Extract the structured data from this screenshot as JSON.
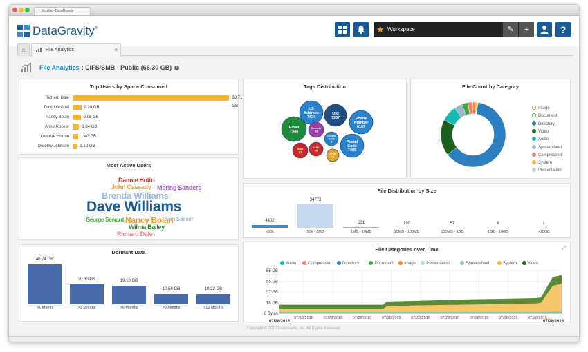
{
  "browser": {
    "tab_title": "Mozilla - DataGravity"
  },
  "app": {
    "logo_text": "DataGravity",
    "trademark": "®"
  },
  "toolbar": {
    "grid_icon": "grid-icon",
    "bell_icon": "bell-icon",
    "workspace_label": "Workspace",
    "edit_icon": "pencil-icon",
    "add_icon": "plus-icon",
    "user_icon": "user-icon",
    "help_icon": "help-icon"
  },
  "tabs": {
    "home_icon": "home-icon",
    "active": "File Analytics",
    "close": "×"
  },
  "page": {
    "title_link": "File Analytics",
    "title_rest": ": CIFS/SMB - Public (66.30 GB)",
    "info": "i"
  },
  "top_users": {
    "title": "Top Users by Space Consumed",
    "rows": [
      {
        "name": "Richard Dale",
        "value": "39.71 GB",
        "gb": 39.71
      },
      {
        "name": "David Goebel",
        "value": "2.20 GB",
        "gb": 2.2
      },
      {
        "name": "Nancy Bolan",
        "value": "2.06 GB",
        "gb": 2.06
      },
      {
        "name": "Anne Rooker",
        "value": "1.64 GB",
        "gb": 1.64
      },
      {
        "name": "Lorenze Horton",
        "value": "1.40 GB",
        "gb": 1.4
      },
      {
        "name": "Dorothy Johnson",
        "value": "1.12 GB",
        "gb": 1.12
      }
    ]
  },
  "active_users": {
    "title": "Most Active Users",
    "words": [
      "Dannie Hutto",
      "John Cassady",
      "Moring Sanders",
      "Brenda Williams",
      "Dave Williams",
      "George Seward",
      "Nancy Bolan",
      "Sam Sasser",
      "Wilma Bailey",
      "Richard Dale"
    ]
  },
  "dormant": {
    "title": "Dormant Data",
    "bars": [
      {
        "label": ">1 Month",
        "value": "40.74 GB",
        "gb": 40.74
      },
      {
        "label": ">3 Months",
        "value": "20.30 GB",
        "gb": 20.3
      },
      {
        "label": ">6 Months",
        "value": "19.10 GB",
        "gb": 19.1
      },
      {
        "label": ">9 Months",
        "value": "10.56 GB",
        "gb": 10.56
      },
      {
        "label": ">12 Months",
        "value": "10.22 GB",
        "gb": 10.22
      }
    ]
  },
  "tags": {
    "title": "Tags Distribution",
    "bubbles": [
      {
        "label": "US Address",
        "count": "7424",
        "color": "#2a83cf"
      },
      {
        "label": "URI",
        "count": "7337",
        "color": "#1f4f80"
      },
      {
        "label": "Phone Number",
        "count": "6167",
        "color": "#2a83cf"
      },
      {
        "label": "Email",
        "count": "7344",
        "color": "#1e8a3c"
      },
      {
        "label": "Generic",
        "count": "33",
        "color": "#9b3fa3"
      },
      {
        "label": "Credit Card",
        "count": "0",
        "color": "#2a83cf"
      },
      {
        "label": "Postal Code",
        "count": "7485",
        "color": "#2a83cf"
      },
      {
        "label": "SSN",
        "count": "27",
        "color": "#c92a2a"
      },
      {
        "label": "ITIN",
        "count": "15",
        "color": "#c92a2a"
      },
      {
        "label": "IPv4",
        "count": "11",
        "color": "#e8a122"
      }
    ]
  },
  "categories": {
    "title": "File Count by Category",
    "legend": [
      {
        "name": "Image",
        "color": "#f58a1f"
      },
      {
        "name": "Document",
        "color": "#3aa83a"
      },
      {
        "name": "Directory",
        "color": "#2b7fc1"
      },
      {
        "name": "Video",
        "color": "#1e5e1e"
      },
      {
        "name": "Audio",
        "color": "#17b8b0"
      },
      {
        "name": "Spreadsheet",
        "color": "#9ab8c8"
      },
      {
        "name": "Compressed",
        "color": "#f27c7c"
      },
      {
        "name": "System",
        "color": "#f5b533"
      },
      {
        "name": "Presentation",
        "color": "#b8d8c0"
      }
    ],
    "slices": [
      {
        "name": "Directory",
        "share": 0.62
      },
      {
        "name": "Video",
        "share": 0.18
      },
      {
        "name": "Audio",
        "share": 0.08
      },
      {
        "name": "Spreadsheet",
        "share": 0.04
      },
      {
        "name": "Document",
        "share": 0.03
      },
      {
        "name": "Compressed",
        "share": 0.025
      },
      {
        "name": "Image",
        "share": 0.015
      },
      {
        "name": "System",
        "share": 0.006
      },
      {
        "name": "Presentation",
        "share": 0.004
      }
    ]
  },
  "size_dist": {
    "title": "File Distribution by Size",
    "cols": [
      {
        "label": "<50k",
        "value": "4402",
        "count": 4402
      },
      {
        "label": "50k - 1MB",
        "value": "34773",
        "count": 34773
      },
      {
        "label": "1MB - 10MB",
        "value": "601",
        "count": 601
      },
      {
        "label": "10MB - 100MB",
        "value": "190",
        "count": 190
      },
      {
        "label": "100MB - 1GB",
        "value": "57",
        "count": 57
      },
      {
        "label": "1GB - 10GB",
        "value": "6",
        "count": 6
      },
      {
        "label": ">10GB",
        "value": "1",
        "count": 1
      }
    ]
  },
  "timeline": {
    "title": "File Categories over Time",
    "expand_icon": "expand-icon",
    "legend": [
      {
        "name": "Audio",
        "color": "#17b8b0"
      },
      {
        "name": "Compressed",
        "color": "#f27c7c"
      },
      {
        "name": "Directory",
        "color": "#2b7fc1"
      },
      {
        "name": "Document",
        "color": "#3aa83a"
      },
      {
        "name": "Image",
        "color": "#f58a1f"
      },
      {
        "name": "Presentation",
        "color": "#b8d8c0"
      },
      {
        "name": "Spreadsheet",
        "color": "#9ab8c8"
      },
      {
        "name": "System",
        "color": "#f5b533"
      },
      {
        "name": "Video",
        "color": "#1e5e1e"
      }
    ],
    "y_ticks": [
      "65 GB",
      "55 GB",
      "37 GB",
      "18 GB",
      "0 Bytes"
    ],
    "x_start": "07/28/2015",
    "x_end": "07/28/2015",
    "x_ticks": [
      "07/28/2015",
      "07/28/2015",
      "07/28/2015",
      "07/28/2015",
      "07/28/2015",
      "07/28/2015",
      "07/28/2015",
      "07/28/2015",
      "07/28/2015"
    ]
  },
  "footer": {
    "copyright": "Copyright © 2015 DataGravity, Inc. All Rights Reserved."
  }
}
